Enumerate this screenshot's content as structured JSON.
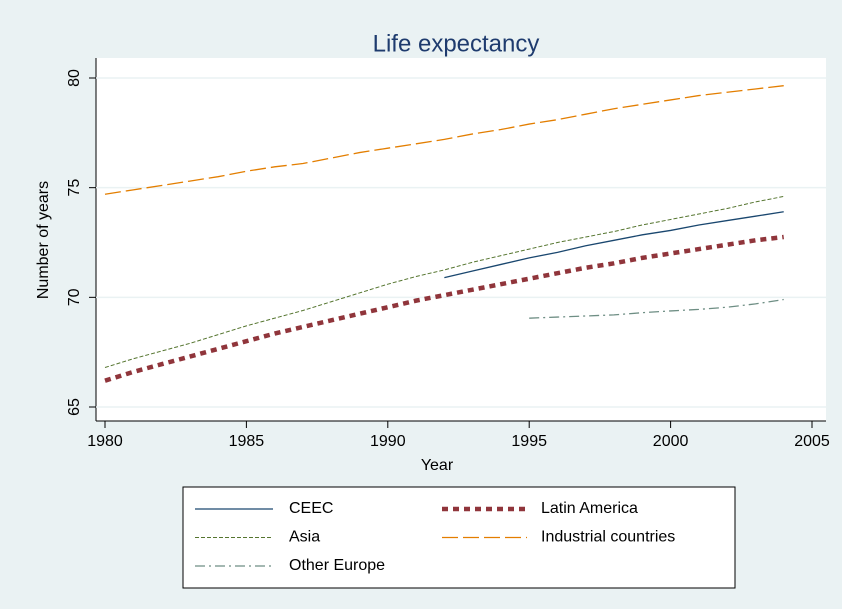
{
  "chart_data": {
    "type": "line",
    "title": "Life expectancy",
    "x_label": "Year",
    "y_label": "Number of years",
    "x": [
      1980,
      1981,
      1982,
      1983,
      1984,
      1985,
      1986,
      1987,
      1988,
      1989,
      1990,
      1991,
      1992,
      1993,
      1994,
      1995,
      1996,
      1997,
      1998,
      1999,
      2000,
      2001,
      2002,
      2003,
      2004
    ],
    "xlim": [
      1980,
      2005
    ],
    "xticks": [
      1980,
      1985,
      1990,
      1995,
      2000,
      2005
    ],
    "ylim": [
      65,
      80
    ],
    "yticks": [
      65,
      70,
      75,
      80
    ],
    "grid": true,
    "series": [
      {
        "name": "CEEC",
        "color": "#1a476f",
        "values": [
          null,
          null,
          null,
          null,
          null,
          null,
          null,
          null,
          null,
          null,
          null,
          null,
          70.9,
          71.2,
          71.5,
          71.8,
          72.05,
          72.35,
          72.6,
          72.85,
          73.05,
          73.3,
          73.5,
          73.7,
          73.9
        ]
      },
      {
        "name": "Latin America",
        "color": "#90353b",
        "values": [
          66.2,
          66.6,
          66.95,
          67.3,
          67.65,
          68.0,
          68.35,
          68.65,
          68.95,
          69.25,
          69.55,
          69.85,
          70.1,
          70.35,
          70.6,
          70.85,
          71.1,
          71.35,
          71.55,
          71.8,
          72.0,
          72.2,
          72.4,
          72.6,
          72.75
        ]
      },
      {
        "name": "Asia",
        "color": "#55752f",
        "values": [
          66.8,
          67.2,
          67.55,
          67.9,
          68.3,
          68.7,
          69.05,
          69.4,
          69.8,
          70.2,
          70.6,
          70.95,
          71.25,
          71.6,
          71.9,
          72.2,
          72.5,
          72.75,
          73.0,
          73.3,
          73.55,
          73.8,
          74.05,
          74.35,
          74.6
        ]
      },
      {
        "name": "Industrial countries",
        "color": "#e37e00",
        "values": [
          74.7,
          74.9,
          75.1,
          75.3,
          75.5,
          75.75,
          75.95,
          76.1,
          76.35,
          76.6,
          76.8,
          77.0,
          77.2,
          77.45,
          77.65,
          77.9,
          78.1,
          78.35,
          78.6,
          78.8,
          79.0,
          79.2,
          79.35,
          79.5,
          79.65
        ]
      },
      {
        "name": "Other Europe",
        "color": "#6e8e84",
        "values": [
          null,
          null,
          null,
          null,
          null,
          null,
          null,
          null,
          null,
          null,
          null,
          null,
          null,
          null,
          null,
          69.05,
          69.1,
          69.15,
          69.2,
          69.3,
          69.38,
          69.45,
          69.55,
          69.7,
          69.9
        ]
      }
    ]
  }
}
